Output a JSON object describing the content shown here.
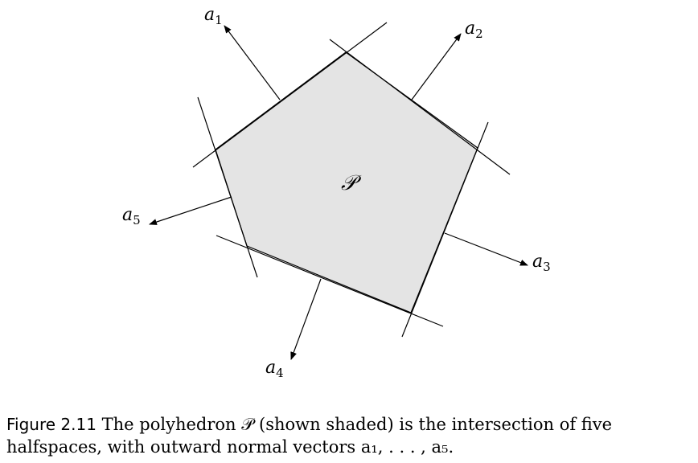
{
  "figure": {
    "polyhedron_label": "𝒫",
    "fill_color": "#e4e4e4",
    "normals": [
      {
        "base": "a",
        "sub": "1"
      },
      {
        "base": "a",
        "sub": "2"
      },
      {
        "base": "a",
        "sub": "3"
      },
      {
        "base": "a",
        "sub": "4"
      },
      {
        "base": "a",
        "sub": "5"
      }
    ]
  },
  "caption": {
    "label": "Figure 2.11",
    "line1": "The polyhedron 𝒫 (shown shaded) is the intersection of five",
    "line2": "halfspaces, with outward normal vectors a₁, . . . , a₅."
  }
}
